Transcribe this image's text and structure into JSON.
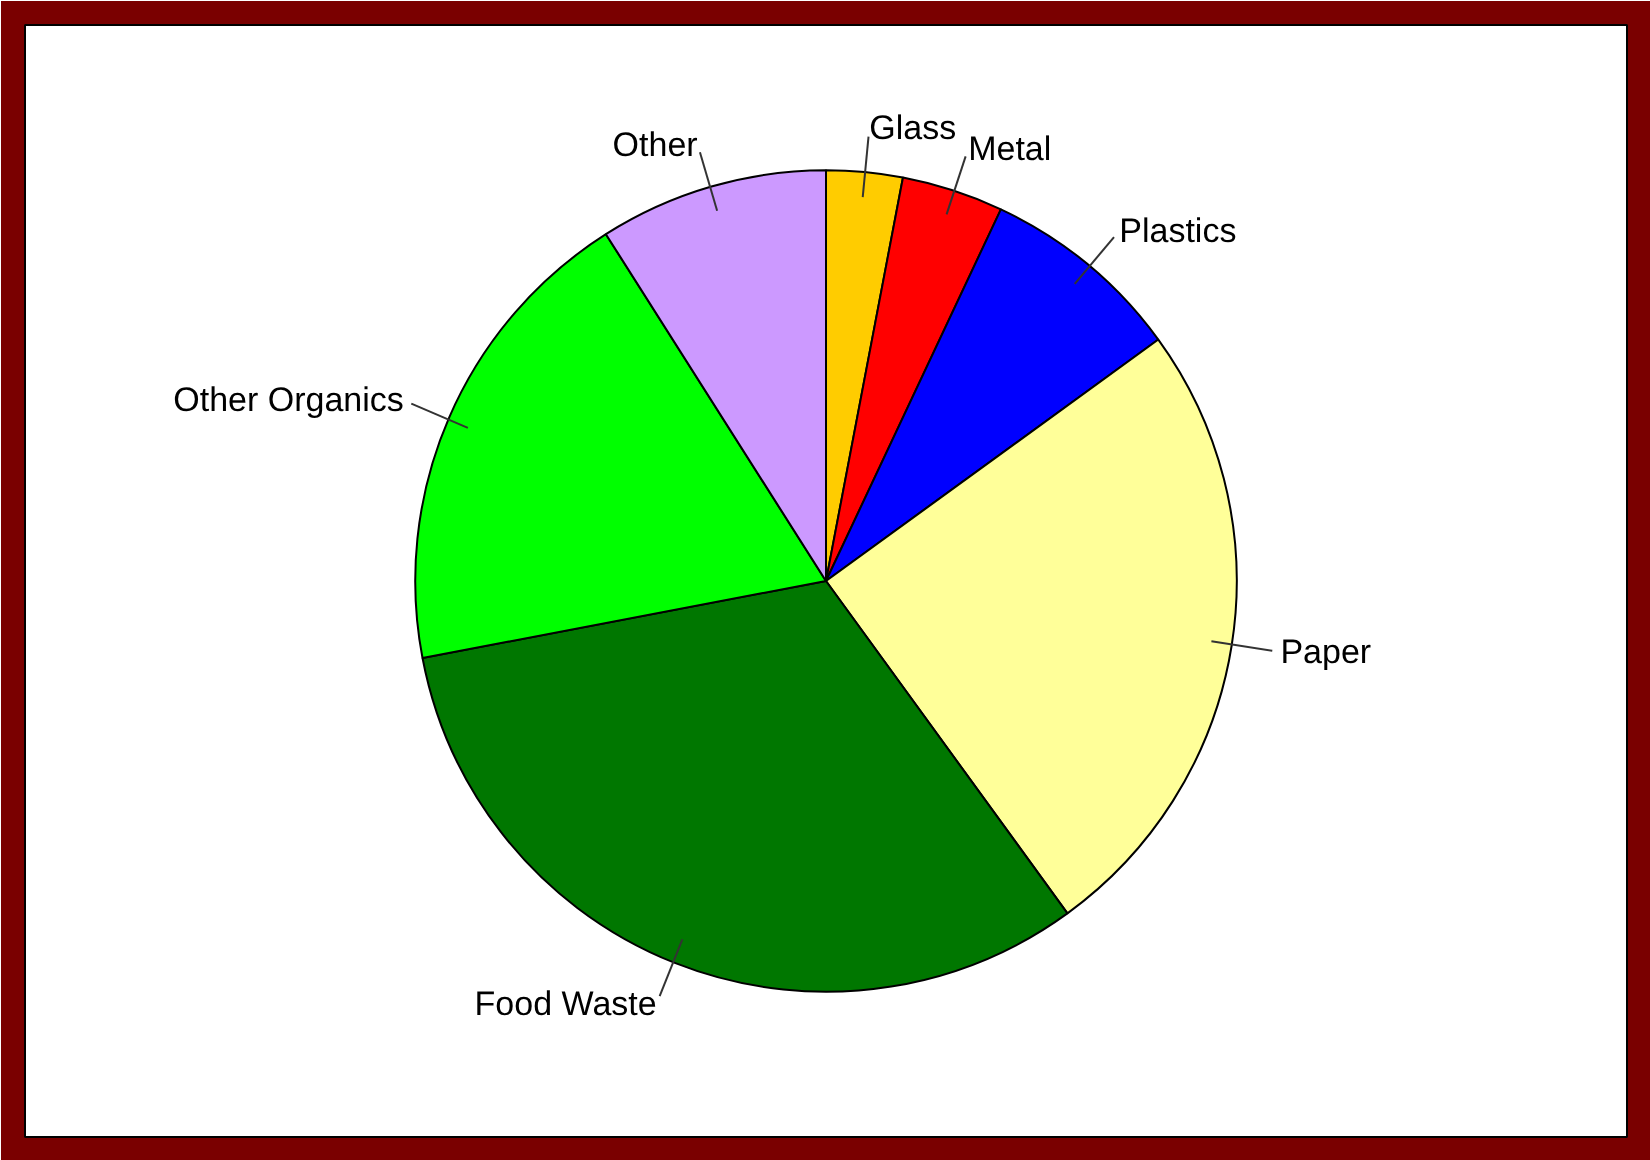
{
  "chart_data": {
    "type": "pie",
    "categories": [
      "Glass",
      "Metal",
      "Plastics",
      "Paper",
      "Food Waste",
      "Other Organics",
      "Other"
    ],
    "values": [
      3,
      4,
      8,
      25,
      32,
      19,
      9
    ],
    "colors": [
      "#ffcc00",
      "#ff0000",
      "#0000ff",
      "#ffff99",
      "#007700",
      "#00ff00",
      "#cc99ff"
    ]
  }
}
